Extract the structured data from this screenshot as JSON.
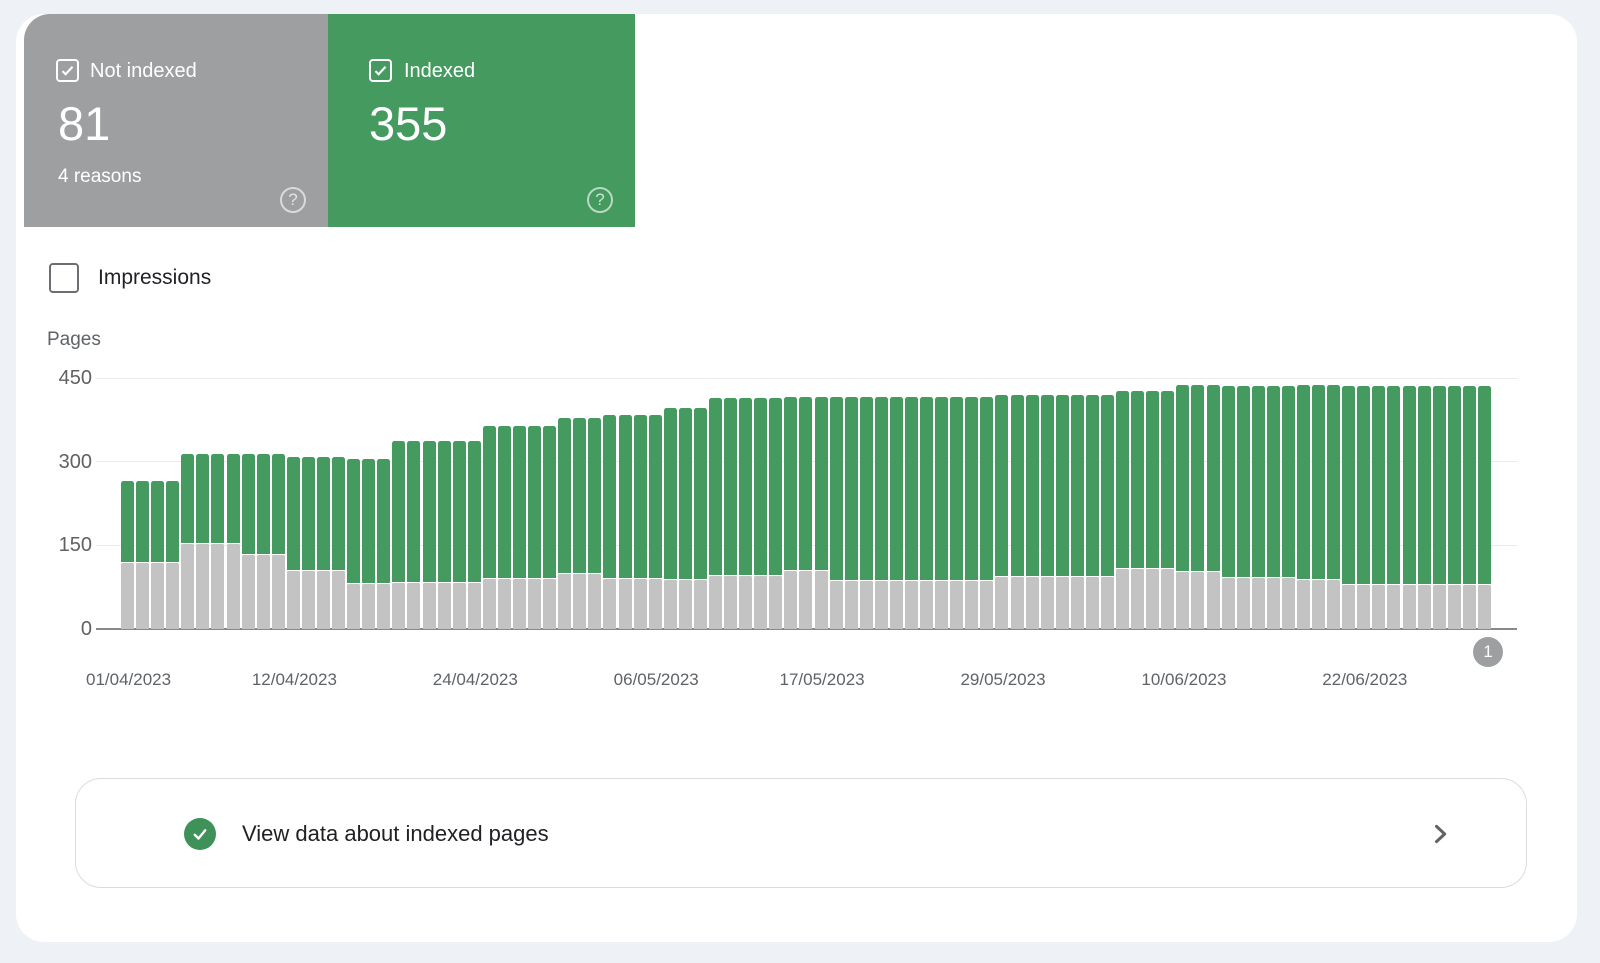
{
  "colors": {
    "page_bg": "#eef1f6",
    "card_bg": "#ffffff",
    "not_indexed_card": "#9e9fa1",
    "indexed_card": "#459a60",
    "bar_not_indexed": "#c3c3c3",
    "bar_indexed": "#459a60",
    "grid": "#e9eaec",
    "axis": "#85898d",
    "tick_text": "#616161"
  },
  "summary_cards": {
    "not_indexed": {
      "label": "Not indexed",
      "count": "81",
      "sub": "4 reasons",
      "checked": true,
      "help_icon": "?"
    },
    "indexed": {
      "label": "Indexed",
      "count": "355",
      "checked": true,
      "help_icon": "?"
    }
  },
  "impressions_toggle": {
    "label": "Impressions",
    "checked": false
  },
  "chart_data": {
    "type": "bar",
    "stacked": true,
    "axis_title": "Pages",
    "ylim": [
      0,
      450
    ],
    "yticks": [
      0,
      150,
      300,
      450
    ],
    "grid": true,
    "x_tick_labels": [
      "01/04/2023",
      "12/04/2023",
      "24/04/2023",
      "06/05/2023",
      "17/05/2023",
      "29/05/2023",
      "10/06/2023",
      "22/06/2023"
    ],
    "x_tick_indices": [
      0,
      11,
      23,
      35,
      46,
      58,
      70,
      82
    ],
    "series": [
      {
        "name": "Not indexed",
        "color": "#c3c3c3",
        "values": [
          120,
          120,
          120,
          120,
          155,
          155,
          155,
          155,
          135,
          135,
          135,
          105,
          105,
          105,
          105,
          82,
          82,
          82,
          85,
          85,
          85,
          85,
          85,
          85,
          92,
          92,
          92,
          92,
          92,
          100,
          100,
          100,
          91,
          91,
          91,
          91,
          90,
          90,
          90,
          97,
          97,
          97,
          97,
          97,
          105,
          105,
          105,
          87,
          87,
          87,
          87,
          87,
          87,
          87,
          87,
          87,
          87,
          87,
          95,
          95,
          95,
          95,
          95,
          95,
          95,
          95,
          110,
          110,
          110,
          110,
          104,
          104,
          104,
          94,
          94,
          94,
          94,
          94,
          90,
          90,
          90,
          81,
          81,
          81,
          81,
          81,
          81,
          81,
          81,
          81,
          81
        ]
      },
      {
        "name": "Indexed",
        "color": "#459a60",
        "values": [
          145,
          145,
          145,
          145,
          160,
          160,
          160,
          160,
          180,
          180,
          180,
          203,
          203,
          203,
          203,
          223,
          223,
          223,
          253,
          253,
          253,
          253,
          253,
          253,
          272,
          272,
          272,
          272,
          272,
          278,
          278,
          278,
          293,
          293,
          293,
          293,
          307,
          307,
          307,
          318,
          318,
          318,
          318,
          318,
          310,
          310,
          310,
          328,
          328,
          328,
          328,
          328,
          328,
          328,
          328,
          328,
          328,
          328,
          325,
          325,
          325,
          325,
          325,
          325,
          325,
          325,
          318,
          318,
          318,
          318,
          333,
          333,
          333,
          343,
          343,
          343,
          343,
          343,
          347,
          347,
          347,
          355,
          355,
          355,
          355,
          355,
          355,
          355,
          355,
          355,
          355
        ]
      }
    ],
    "pagination_badge": "1"
  },
  "footer_action": {
    "label": "View data about indexed pages",
    "icon": "check-circle",
    "chevron_icon": "chevron-right"
  }
}
